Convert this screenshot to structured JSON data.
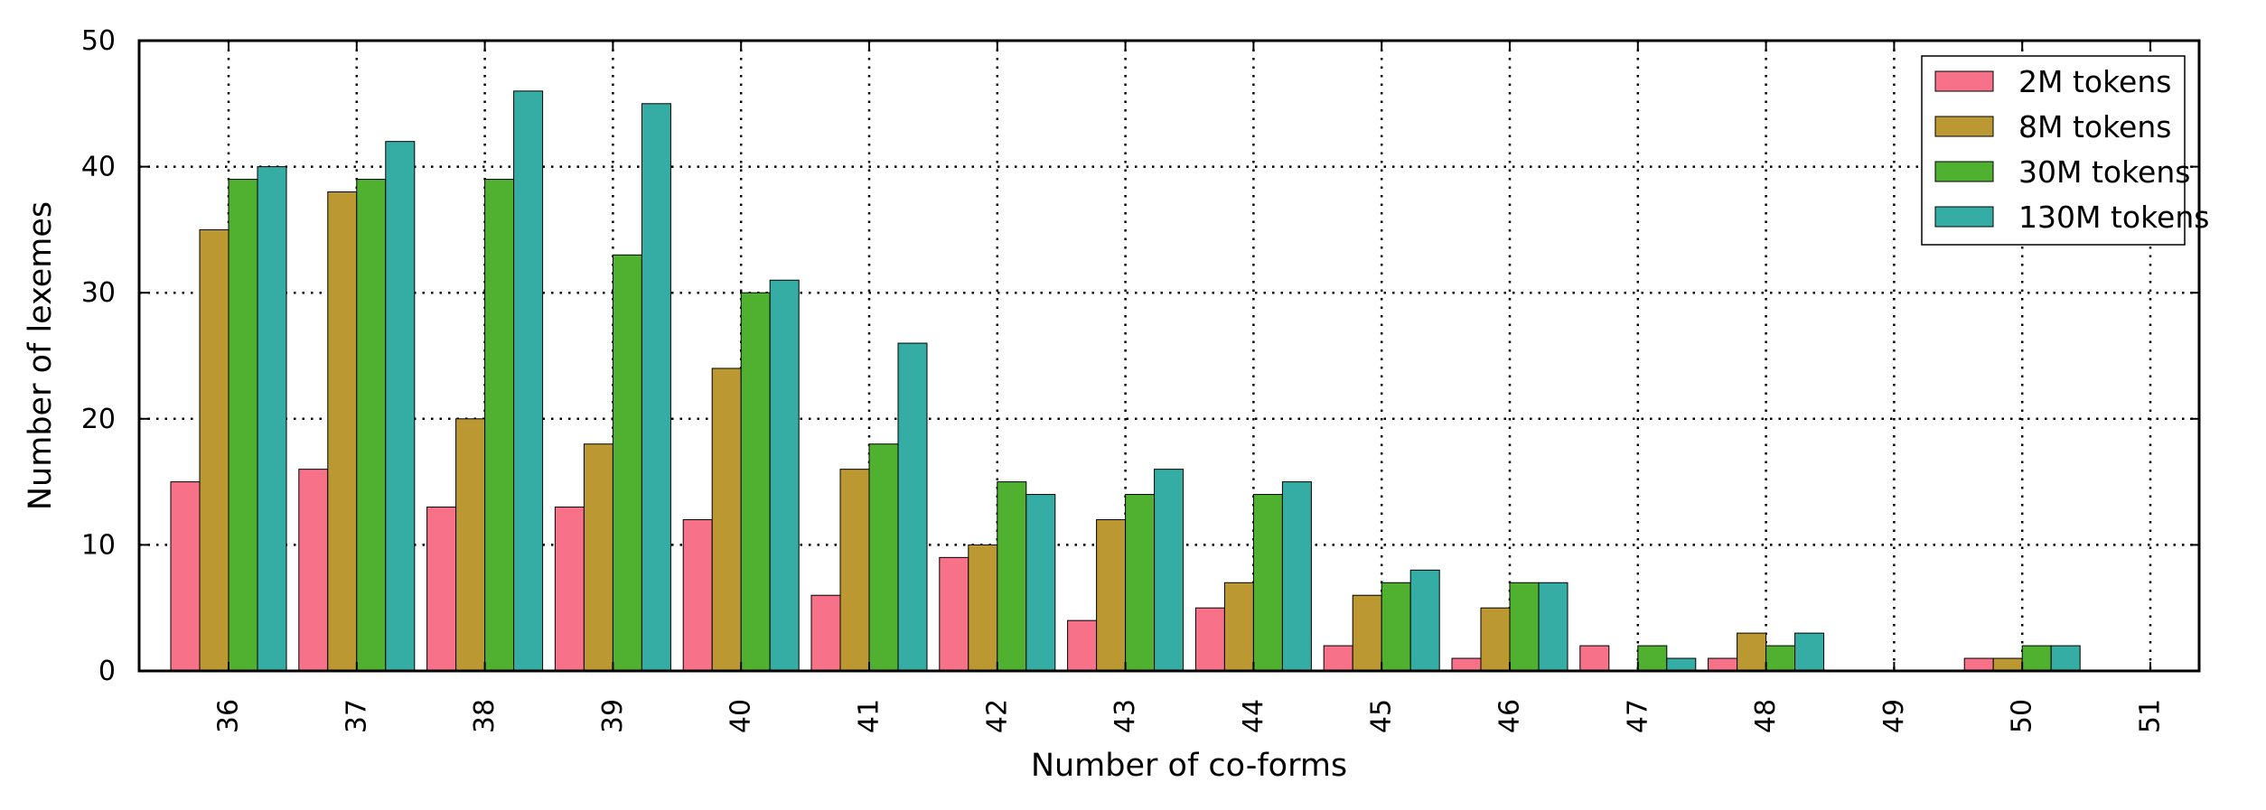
{
  "chart_data": {
    "type": "bar",
    "title": "",
    "xlabel": "Number of co-forms",
    "ylabel": "Number of lexemes",
    "ylim": [
      0,
      50
    ],
    "yticks": [
      0,
      10,
      20,
      30,
      40,
      50
    ],
    "grid": true,
    "legend_position": "top-right",
    "categories": [
      "36",
      "37",
      "38",
      "39",
      "40",
      "41",
      "42",
      "43",
      "44",
      "45",
      "46",
      "47",
      "48",
      "49",
      "50",
      "51"
    ],
    "series": [
      {
        "name": "2M tokens",
        "color": "#f77189",
        "values": [
          15,
          16,
          13,
          13,
          12,
          6,
          9,
          4,
          5,
          2,
          1,
          2,
          1,
          0,
          1,
          0
        ]
      },
      {
        "name": "8M tokens",
        "color": "#bb9832",
        "values": [
          35,
          38,
          20,
          18,
          24,
          16,
          10,
          12,
          7,
          6,
          5,
          0,
          3,
          0,
          1,
          0
        ]
      },
      {
        "name": "30M tokens",
        "color": "#50b131",
        "values": [
          39,
          39,
          39,
          33,
          30,
          18,
          15,
          14,
          14,
          7,
          7,
          2,
          2,
          0,
          2,
          0
        ]
      },
      {
        "name": "130M tokens",
        "color": "#36ada4",
        "values": [
          40,
          42,
          46,
          45,
          31,
          26,
          14,
          16,
          15,
          8,
          7,
          1,
          3,
          0,
          2,
          0
        ]
      }
    ]
  }
}
